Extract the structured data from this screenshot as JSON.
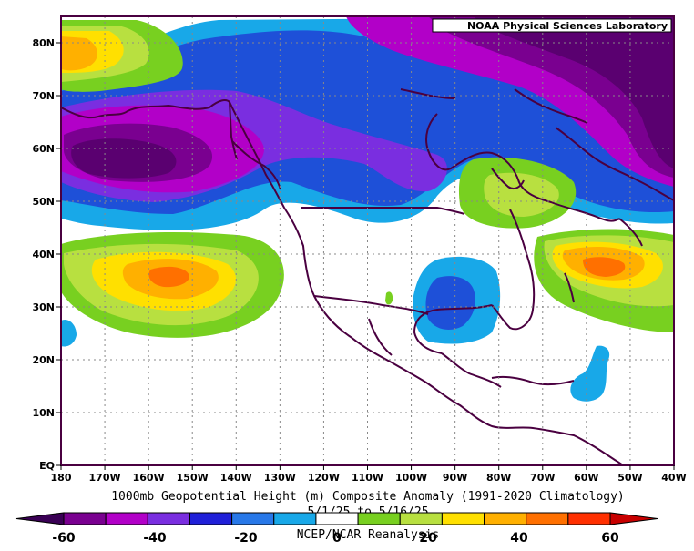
{
  "credit": "NOAA Physical Sciences Laboratory",
  "title": {
    "line1": "1000mb Geopotential Height (m) Composite Anomaly (1991-2020 Climatology)",
    "line2": "5/1/25   to  5/16/25",
    "line3": "NCEP/NCAR Reanalysis"
  },
  "lat_labels": [
    "80N",
    "70N",
    "60N",
    "50N",
    "40N",
    "30N",
    "20N",
    "10N",
    "EQ"
  ],
  "lon_labels": [
    "180",
    "170W",
    "160W",
    "150W",
    "140W",
    "130W",
    "120W",
    "110W",
    "100W",
    "90W",
    "80W",
    "70W",
    "60W",
    "50W",
    "40W"
  ],
  "colorbar": {
    "labels": [
      "-60",
      "-40",
      "-20",
      "0",
      "20",
      "40",
      "60"
    ],
    "levels": [
      -60,
      -50,
      -40,
      -30,
      -20,
      -10,
      10,
      20,
      30,
      40,
      50,
      60
    ],
    "colors": [
      "#3a0055",
      "#7a0090",
      "#b200c8",
      "#7a2ee0",
      "#2020d8",
      "#2878e8",
      "#18a8e8",
      "#ffffff",
      "#78d020",
      "#b8e040",
      "#ffe000",
      "#ffb000",
      "#ff7000",
      "#ff3000",
      "#c80000"
    ]
  },
  "palette": {
    "v60": "#5a0070",
    "v50": "#7a0090",
    "v40": "#b200c8",
    "v30": "#7a2ee0",
    "b20": "#1e50d8",
    "b10": "#18a8e8",
    "g10": "#78d020",
    "g20": "#b8e040",
    "y30": "#ffe000",
    "o40": "#ffb000",
    "o50": "#ff7000"
  }
}
